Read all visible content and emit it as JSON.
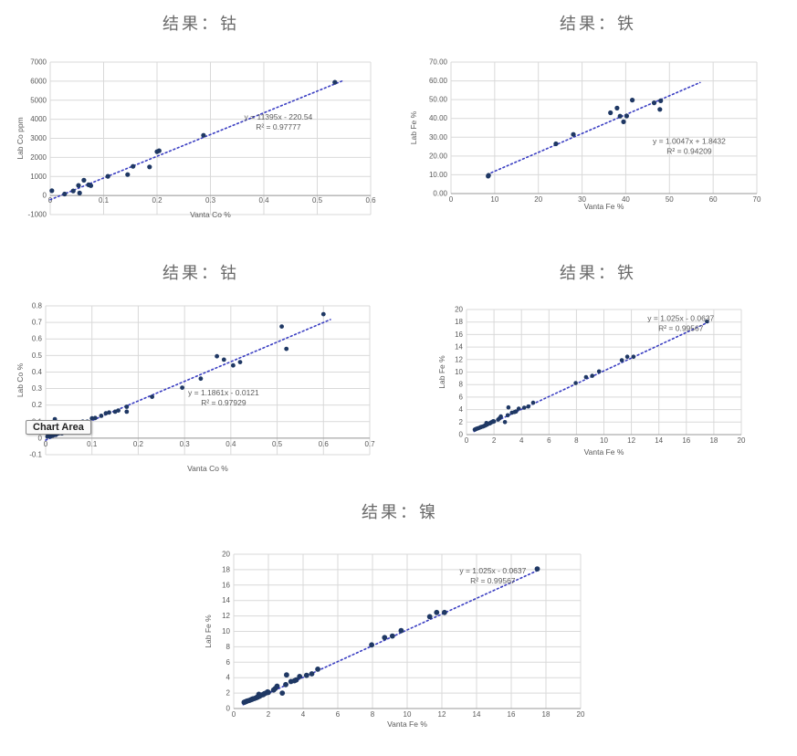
{
  "colors": {
    "point": "#1f3864",
    "trendline": "#3a3ec2",
    "grid": "#d9d9d9",
    "axis": "#9a9a9a",
    "text": "#595959",
    "title": "#6a6a6a"
  },
  "chart_data": [
    {
      "type": "scatter",
      "title": "结果：钴",
      "xlabel": "Vanta Co %",
      "ylabel": "Lab Co ppm",
      "xlim": [
        0,
        0.6
      ],
      "xstep": 0.1,
      "xformat": "general",
      "ylim": [
        -1000,
        7000
      ],
      "ystep": 1000,
      "yformat": "general",
      "grid": true,
      "equation": "y = 11395x - 220.54",
      "r2_label": "R² = 0.97777",
      "eq_pos": [
        0.712,
        0.377
      ],
      "trendline": {
        "slope": 11395,
        "intercept": -220.54,
        "x_start": 0,
        "x_end": 0.547
      },
      "points": [
        [
          0.003,
          250
        ],
        [
          0.027,
          80
        ],
        [
          0.043,
          240
        ],
        [
          0.053,
          530
        ],
        [
          0.055,
          130
        ],
        [
          0.063,
          800
        ],
        [
          0.072,
          560
        ],
        [
          0.076,
          520
        ],
        [
          0.108,
          1005
        ],
        [
          0.145,
          1100
        ],
        [
          0.155,
          1530
        ],
        [
          0.186,
          1500
        ],
        [
          0.2,
          2300
        ],
        [
          0.204,
          2350
        ],
        [
          0.287,
          3160
        ],
        [
          0.533,
          5940
        ]
      ]
    },
    {
      "type": "scatter",
      "title": "结果：铁",
      "xlabel": "Vanta Fe %",
      "ylabel": "Lab Fe %",
      "xlim": [
        0,
        70
      ],
      "xstep": 10,
      "xformat": "general",
      "ylim": [
        0,
        70
      ],
      "ystep": 10,
      "yformat": "fixed2",
      "grid": true,
      "equation": "y = 1.0047x + 1.8432",
      "r2_label": "R² = 0.94209",
      "eq_pos": [
        0.779,
        0.62
      ],
      "trendline": {
        "slope": 1.0047,
        "intercept": 1.8432,
        "x_start": 8.3,
        "x_end": 57
      },
      "points": [
        [
          8.5,
          9.3
        ],
        [
          8.6,
          9.7
        ],
        [
          24,
          26.5
        ],
        [
          28,
          31.5
        ],
        [
          36.5,
          43
        ],
        [
          38,
          45.5
        ],
        [
          38.7,
          41.2
        ],
        [
          39.5,
          38.2
        ],
        [
          40.2,
          41.3
        ],
        [
          41.5,
          49.8
        ],
        [
          46.5,
          48.3
        ],
        [
          47.8,
          44.8
        ],
        [
          48,
          49.4
        ]
      ]
    },
    {
      "type": "scatter",
      "title": "结果：钴",
      "xlabel": "Vanta Co %",
      "ylabel": "Lab Co %",
      "xlim": [
        0,
        0.7
      ],
      "xstep": 0.1,
      "xformat": "general",
      "ylim": [
        -0.1,
        0.8
      ],
      "ystep": 0.1,
      "yformat": "general",
      "grid": true,
      "equation": "y = 1.1861x - 0.0121",
      "r2_label": "R² = 0.97929",
      "eq_pos": [
        0.549,
        0.6
      ],
      "tooltip": "Chart Area",
      "trendline": {
        "slope": 1.1861,
        "intercept": -0.0121,
        "x_start": 0,
        "x_end": 0.615
      },
      "points": [
        [
          0.004,
          0.01
        ],
        [
          0.006,
          0.015
        ],
        [
          0.01,
          0.01
        ],
        [
          0.012,
          0.02
        ],
        [
          0.015,
          0.015
        ],
        [
          0.018,
          0.025
        ],
        [
          0.022,
          0.02
        ],
        [
          0.028,
          0.03
        ],
        [
          0.035,
          0.03
        ],
        [
          0.02,
          0.115
        ],
        [
          0.06,
          0.095
        ],
        [
          0.07,
          0.09
        ],
        [
          0.08,
          0.1
        ],
        [
          0.09,
          0.1
        ],
        [
          0.1,
          0.12
        ],
        [
          0.107,
          0.122
        ],
        [
          0.12,
          0.135
        ],
        [
          0.13,
          0.15
        ],
        [
          0.137,
          0.155
        ],
        [
          0.15,
          0.16
        ],
        [
          0.157,
          0.167
        ],
        [
          0.175,
          0.16
        ],
        [
          0.175,
          0.19
        ],
        [
          0.23,
          0.25
        ],
        [
          0.295,
          0.305
        ],
        [
          0.335,
          0.36
        ],
        [
          0.37,
          0.495
        ],
        [
          0.385,
          0.475
        ],
        [
          0.405,
          0.44
        ],
        [
          0.42,
          0.46
        ],
        [
          0.51,
          0.675
        ],
        [
          0.52,
          0.54
        ],
        [
          0.6,
          0.75
        ]
      ]
    },
    {
      "type": "scatter",
      "title": "结果：铁",
      "xlabel": "Vanta Fe %",
      "ylabel": "Lab Fe %",
      "xlim": [
        0,
        20
      ],
      "xstep": 2,
      "xformat": "general",
      "ylim": [
        0,
        20
      ],
      "ystep": 2,
      "yformat": "general",
      "grid": true,
      "equation": "y = 1.025x - 0.0637",
      "r2_label": "R² = 0.99567",
      "eq_pos": [
        0.78,
        0.09
      ],
      "trendline": {
        "slope": 1.025,
        "intercept": -0.0637,
        "x_start": 0.55,
        "x_end": 17.6
      },
      "points": [
        [
          0.6,
          0.8
        ],
        [
          0.65,
          0.85
        ],
        [
          0.7,
          0.9
        ],
        [
          0.75,
          0.95
        ],
        [
          0.8,
          1.0
        ],
        [
          0.9,
          1.05
        ],
        [
          1.0,
          1.15
        ],
        [
          1.05,
          1.2
        ],
        [
          1.1,
          1.25
        ],
        [
          1.2,
          1.3
        ],
        [
          1.3,
          1.4
        ],
        [
          1.35,
          1.45
        ],
        [
          1.4,
          1.5
        ],
        [
          1.45,
          1.85
        ],
        [
          1.5,
          1.6
        ],
        [
          1.6,
          1.75
        ],
        [
          1.7,
          1.8
        ],
        [
          1.75,
          1.9
        ],
        [
          1.8,
          1.95
        ],
        [
          1.9,
          2.05
        ],
        [
          1.95,
          2.15
        ],
        [
          2.0,
          2.1
        ],
        [
          2.3,
          2.4
        ],
        [
          2.4,
          2.6
        ],
        [
          2.5,
          2.9
        ],
        [
          2.8,
          2.0
        ],
        [
          3.0,
          3.1
        ],
        [
          3.05,
          4.35
        ],
        [
          3.3,
          3.5
        ],
        [
          3.5,
          3.6
        ],
        [
          3.6,
          3.7
        ],
        [
          3.8,
          4.15
        ],
        [
          4.2,
          4.3
        ],
        [
          4.5,
          4.5
        ],
        [
          4.85,
          5.1
        ],
        [
          7.95,
          8.25
        ],
        [
          8.7,
          9.2
        ],
        [
          9.15,
          9.4
        ],
        [
          9.65,
          10.1
        ],
        [
          11.3,
          11.9
        ],
        [
          11.7,
          12.45
        ],
        [
          12.15,
          12.45
        ],
        [
          17.5,
          18.1
        ]
      ]
    },
    {
      "type": "scatter",
      "title": "结果：镍",
      "xlabel": "Vanta Fe %",
      "ylabel": "Lab Fe %",
      "xlim": [
        0,
        20
      ],
      "xstep": 2,
      "xformat": "general",
      "ylim": [
        0,
        20
      ],
      "ystep": 2,
      "yformat": "general",
      "grid": true,
      "equation": "y = 1.025x - 0.0637",
      "r2_label": "R² = 0.99567",
      "eq_pos": [
        0.747,
        0.124
      ],
      "trendline": {
        "slope": 1.025,
        "intercept": -0.0637,
        "x_start": 0.55,
        "x_end": 17.6
      },
      "points": [
        [
          0.6,
          0.8
        ],
        [
          0.65,
          0.85
        ],
        [
          0.7,
          0.9
        ],
        [
          0.75,
          0.95
        ],
        [
          0.8,
          1.0
        ],
        [
          0.9,
          1.05
        ],
        [
          1.0,
          1.15
        ],
        [
          1.05,
          1.2
        ],
        [
          1.1,
          1.25
        ],
        [
          1.2,
          1.3
        ],
        [
          1.3,
          1.4
        ],
        [
          1.35,
          1.45
        ],
        [
          1.4,
          1.5
        ],
        [
          1.45,
          1.85
        ],
        [
          1.5,
          1.6
        ],
        [
          1.6,
          1.75
        ],
        [
          1.7,
          1.8
        ],
        [
          1.75,
          1.9
        ],
        [
          1.8,
          1.95
        ],
        [
          1.9,
          2.05
        ],
        [
          1.95,
          2.15
        ],
        [
          2.0,
          2.1
        ],
        [
          2.3,
          2.4
        ],
        [
          2.4,
          2.6
        ],
        [
          2.5,
          2.9
        ],
        [
          2.8,
          2.0
        ],
        [
          3.0,
          3.1
        ],
        [
          3.05,
          4.35
        ],
        [
          3.3,
          3.5
        ],
        [
          3.5,
          3.6
        ],
        [
          3.6,
          3.7
        ],
        [
          3.8,
          4.15
        ],
        [
          4.2,
          4.3
        ],
        [
          4.5,
          4.5
        ],
        [
          4.85,
          5.1
        ],
        [
          7.95,
          8.25
        ],
        [
          8.7,
          9.2
        ],
        [
          9.15,
          9.4
        ],
        [
          9.65,
          10.1
        ],
        [
          11.3,
          11.9
        ],
        [
          11.7,
          12.45
        ],
        [
          12.15,
          12.45
        ],
        [
          17.5,
          18.1
        ]
      ]
    }
  ]
}
